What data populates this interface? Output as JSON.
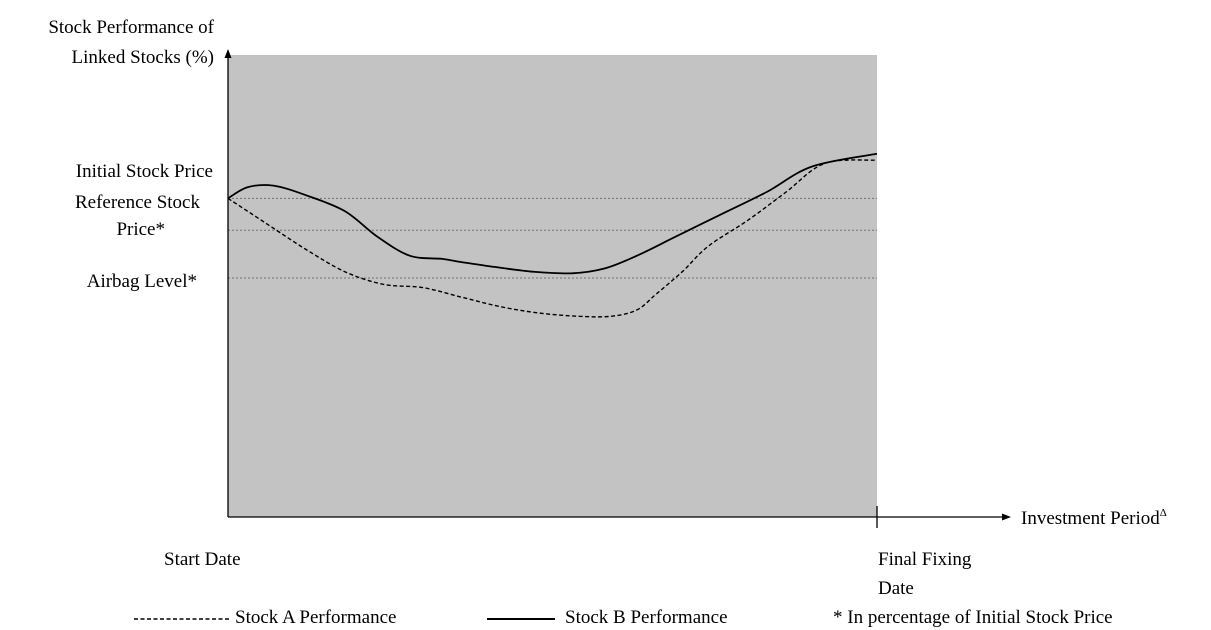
{
  "chart_data": {
    "type": "line",
    "title": "",
    "ylabel": [
      "Stock Performance of",
      "Linked Stocks (%)"
    ],
    "xlabel": "Investment Period",
    "xlabel_superscript": "Δ",
    "x_ticks": [
      {
        "x": 0,
        "label": [
          "Start Date"
        ]
      },
      {
        "x": 1,
        "label": [
          "Final Fixing",
          "Date"
        ]
      }
    ],
    "y_refs": [
      {
        "name": "initial",
        "y": 100,
        "label": [
          "Initial Stock Price"
        ]
      },
      {
        "name": "reference",
        "y": 90,
        "label": [
          "Reference Stock",
          "Price*"
        ]
      },
      {
        "name": "airbag",
        "y": 75,
        "label": [
          "Airbag Level*"
        ]
      }
    ],
    "xlim": [
      0,
      1
    ],
    "ylim": [
      0,
      145
    ],
    "plot_background": "#c3c3c3",
    "reference_line_color": "#707070",
    "series": [
      {
        "name": "Stock A Performance",
        "dash": "dashed",
        "x": [
          0,
          0.06,
          0.12,
          0.18,
          0.24,
          0.3,
          0.36,
          0.42,
          0.48,
          0.54,
          0.59,
          0.63,
          0.66,
          0.7,
          0.74,
          0.8,
          0.86,
          0.92,
          1.0
        ],
        "y": [
          100,
          92,
          84,
          77,
          73,
          72,
          69,
          66,
          64,
          63,
          63,
          65,
          70,
          77,
          85,
          93,
          102,
          111,
          112
        ]
      },
      {
        "name": "Stock B Performance",
        "dash": "solid",
        "x": [
          0,
          0.03,
          0.07,
          0.12,
          0.18,
          0.23,
          0.28,
          0.33,
          0.36,
          0.41,
          0.47,
          0.53,
          0.58,
          0.63,
          0.69,
          0.76,
          0.83,
          0.9,
          1.0
        ],
        "y": [
          100,
          103.5,
          104,
          101,
          96,
          88,
          82,
          81,
          80,
          78.5,
          77,
          76.5,
          78,
          82,
          88,
          95,
          102,
          110,
          114
        ]
      }
    ],
    "footnote": "* In percentage of Initial Stock Price"
  }
}
